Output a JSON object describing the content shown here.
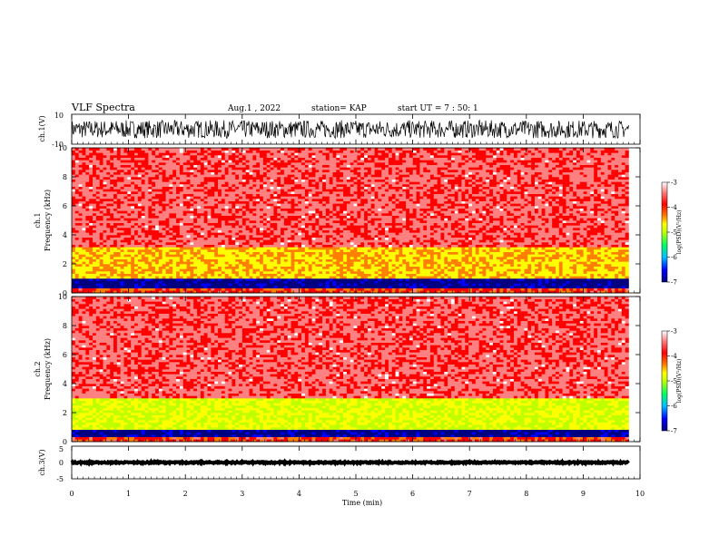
{
  "header": {
    "title": "VLF Spectra",
    "date": "Aug.1 , 2022",
    "station": "station= KAP",
    "start": "start UT = 7 : 50: 1"
  },
  "colors": {
    "waveform": "#000000",
    "colormap": [
      "#000080",
      "#0000ff",
      "#00c0ff",
      "#00ff60",
      "#c0ff00",
      "#ffff00",
      "#ff8000",
      "#ff0000",
      "#ff8080",
      "#ffffff"
    ]
  },
  "chart_data": [
    {
      "type": "line",
      "name": "ch1-waveform",
      "ylabel": "ch.1(V)",
      "ylim": [
        -10,
        10
      ],
      "yticks": [
        "10",
        "-10"
      ],
      "xlim": [
        0,
        10
      ],
      "description_values": {
        "typical_envelope": [
          -6,
          6
        ]
      }
    },
    {
      "type": "heatmap",
      "name": "ch1-spectrogram",
      "ylabel": "ch.1",
      "ylabel2": "Frequency (kHz)",
      "ylim": [
        0,
        10
      ],
      "yticks": [
        "0",
        "2",
        "4",
        "6",
        "8",
        "10"
      ],
      "xlim": [
        0,
        10
      ],
      "colorbar": {
        "label": "log(PSD)(V²/Hz)",
        "range": [
          -7,
          -3
        ],
        "ticks": [
          "-3",
          "-4",
          "-5",
          "-6",
          "-7"
        ]
      },
      "bands_khz": [
        {
          "from": 0,
          "to": 0.4,
          "level": -4.0
        },
        {
          "from": 1.0,
          "to": 3.2,
          "level": -4.6
        },
        {
          "from": 3.2,
          "to": 10,
          "level": -3.6
        }
      ]
    },
    {
      "type": "heatmap",
      "name": "ch2-spectrogram",
      "ylabel": "ch.2",
      "ylabel2": "Frequency (kHz)",
      "ylim": [
        0,
        10
      ],
      "yticks": [
        "0",
        "2",
        "4",
        "6",
        "8",
        "10"
      ],
      "xlim": [
        0,
        10
      ],
      "colorbar": {
        "label": "log(PSD)(V²/Hz)",
        "range": [
          -7,
          -3
        ],
        "ticks": [
          "-3",
          "-4",
          "-5",
          "-6",
          "-7"
        ]
      },
      "bands_khz": [
        {
          "from": 0,
          "to": 0.4,
          "level": -4.0
        },
        {
          "from": 0.8,
          "to": 3.0,
          "level": -5.0
        },
        {
          "from": 3.0,
          "to": 10,
          "level": -3.6
        }
      ]
    },
    {
      "type": "line",
      "name": "ch3-waveform",
      "ylabel": "ch.3(V)",
      "ylim": [
        -5,
        5
      ],
      "yticks": [
        "5",
        "0",
        "-5"
      ],
      "xlim": [
        0,
        10
      ],
      "description_values": {
        "typical_envelope": [
          -0.2,
          0.2
        ]
      }
    }
  ],
  "xaxis": {
    "label": "Time (min)",
    "ticks": [
      "0",
      "1",
      "2",
      "3",
      "4",
      "5",
      "6",
      "7",
      "8",
      "9",
      "10"
    ],
    "data_end": 9.8
  }
}
